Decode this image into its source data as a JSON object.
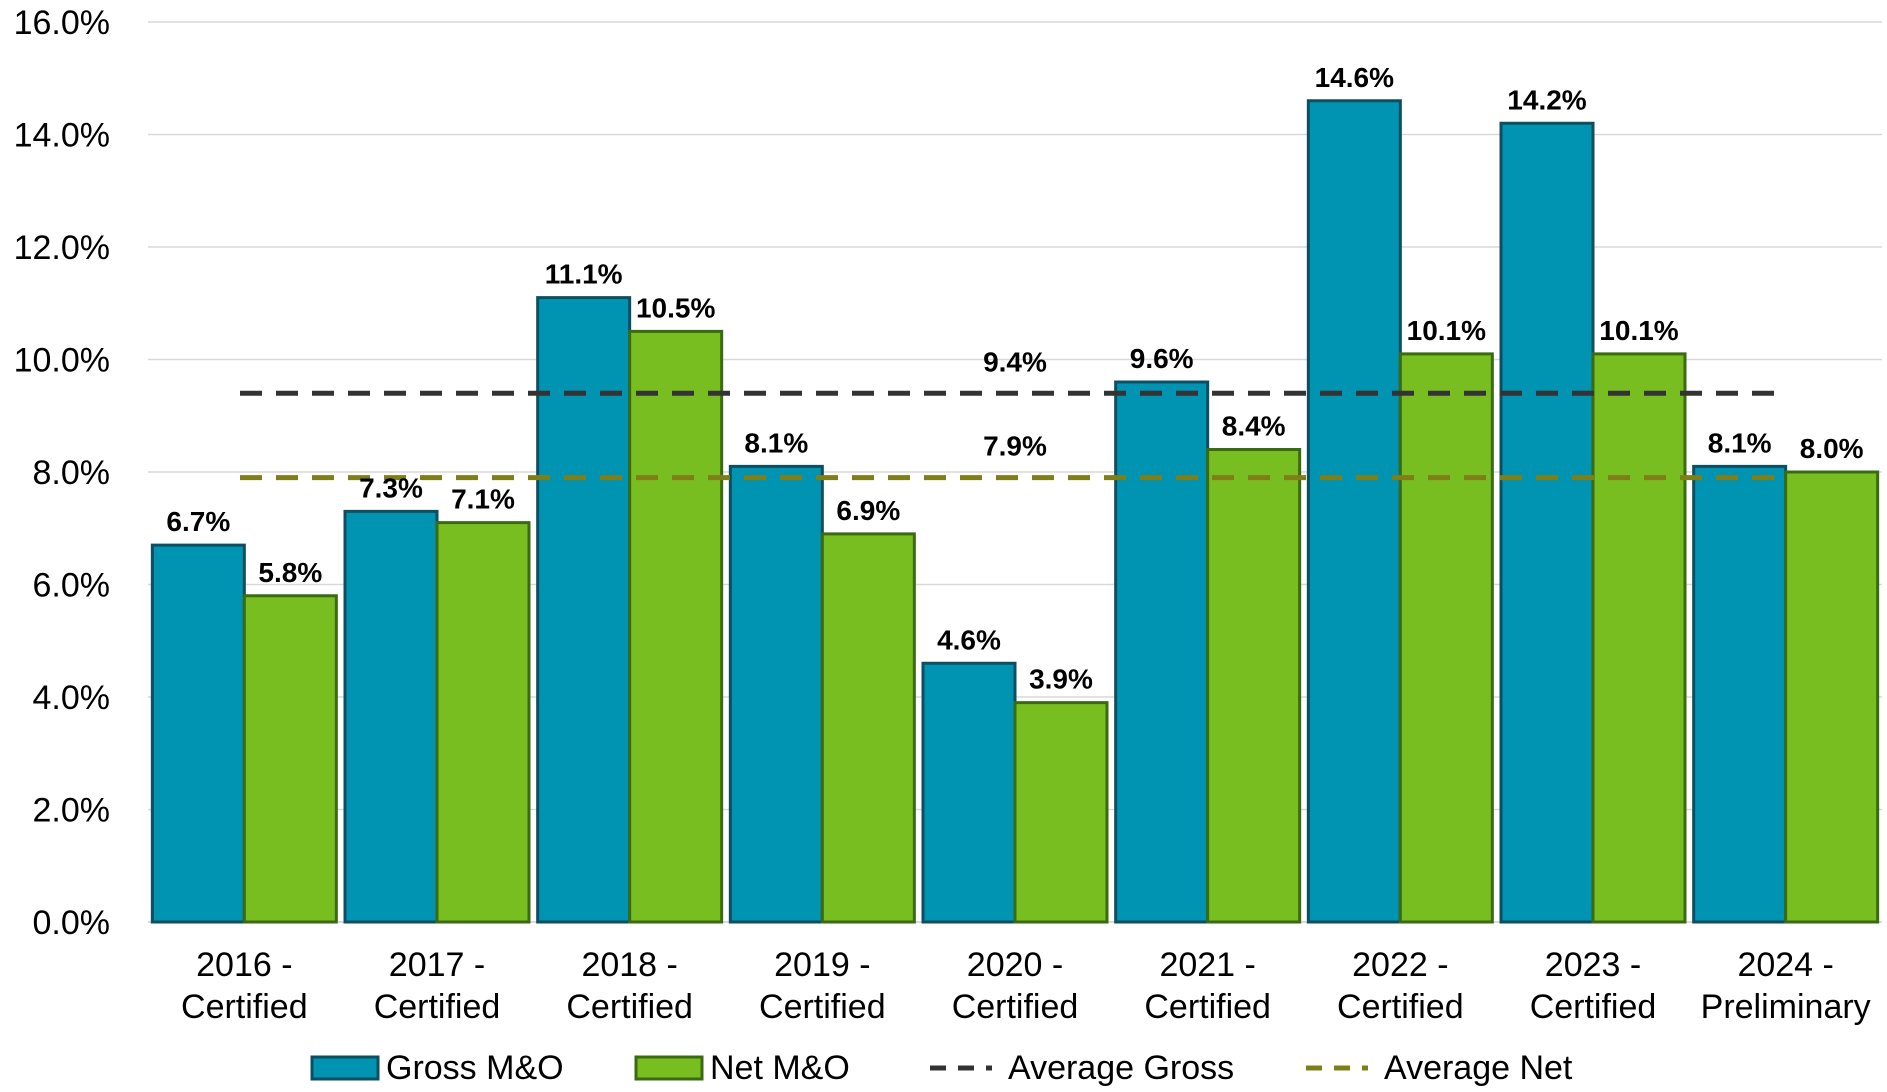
{
  "chart_data": {
    "type": "bar",
    "title": "",
    "xlabel": "",
    "ylabel": "",
    "ylim": [
      0,
      16
    ],
    "y_ticks": [
      "0.0%",
      "2.0%",
      "4.0%",
      "6.0%",
      "8.0%",
      "10.0%",
      "12.0%",
      "14.0%",
      "16.0%"
    ],
    "grid": "horizontal",
    "legend_position": "bottom",
    "categories": [
      [
        "2016 -",
        "Certified"
      ],
      [
        "2017 -",
        "Certified"
      ],
      [
        "2018 -",
        "Certified"
      ],
      [
        "2019 -",
        "Certified"
      ],
      [
        "2020 -",
        "Certified"
      ],
      [
        "2021 -",
        "Certified"
      ],
      [
        "2022 -",
        "Certified"
      ],
      [
        "2023 -",
        "Certified"
      ],
      [
        "2024 -",
        "Preliminary"
      ]
    ],
    "series": [
      {
        "name": "Gross M&O",
        "color": "#0093B2",
        "stroke": "#0D4F61",
        "values": [
          6.7,
          7.3,
          11.1,
          8.1,
          4.6,
          9.6,
          14.6,
          14.2,
          8.1
        ],
        "labels": [
          "6.7%",
          "7.3%",
          "11.1%",
          "8.1%",
          "4.6%",
          "9.6%",
          "14.6%",
          "14.2%",
          "8.1%"
        ]
      },
      {
        "name": "Net M&O",
        "color": "#78BE20",
        "stroke": "#3A6B12",
        "values": [
          5.8,
          7.1,
          10.5,
          6.9,
          3.9,
          8.4,
          10.1,
          10.1,
          8.0
        ],
        "labels": [
          "5.8%",
          "7.1%",
          "10.5%",
          "6.9%",
          "3.9%",
          "8.4%",
          "10.1%",
          "10.1%",
          "8.0%"
        ]
      }
    ],
    "reference_lines": [
      {
        "name": "Average Gross",
        "value": 9.4,
        "label": "9.4%",
        "color": "#333333"
      },
      {
        "name": "Average Net",
        "value": 7.9,
        "label": "7.9%",
        "color": "#7F7F1A"
      }
    ]
  }
}
